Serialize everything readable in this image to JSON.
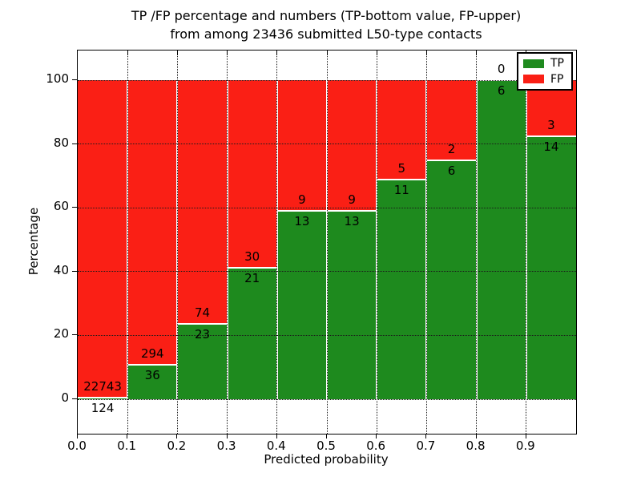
{
  "chart_data": {
    "type": "bar",
    "stacked": true,
    "normalized": "percent",
    "title_line1": "TP /FP percentage and numbers (TP-bottom value, FP-upper)",
    "title_line2": "from among 23436 submitted L50-type contacts",
    "xlabel": "Predicted probability",
    "ylabel": "Percentage",
    "bins_start": [
      0.0,
      0.1,
      0.2,
      0.3,
      0.4,
      0.5,
      0.6,
      0.7,
      0.8,
      0.9
    ],
    "bin_width": 0.1,
    "x_tick_labels": [
      "0.0",
      "0.1",
      "0.2",
      "0.3",
      "0.4",
      "0.5",
      "0.6",
      "0.7",
      "0.8",
      "0.9"
    ],
    "y_ticks": [
      0,
      20,
      40,
      60,
      80,
      100
    ],
    "xlim": [
      0,
      1
    ],
    "ylim": [
      -11,
      109
    ],
    "grid": "dotted",
    "series": [
      {
        "name": "TP",
        "color": "#1e8a1e",
        "values": [
          124,
          36,
          23,
          21,
          13,
          13,
          11,
          6,
          6,
          14
        ]
      },
      {
        "name": "FP",
        "color": "#fa1f15",
        "values": [
          22743,
          294,
          74,
          30,
          9,
          9,
          5,
          2,
          0,
          3
        ]
      }
    ],
    "tp_percentages": [
      0.54,
      10.91,
      23.71,
      41.18,
      59.09,
      59.09,
      68.75,
      75.0,
      100.0,
      82.35
    ],
    "legend": {
      "position": "upper right",
      "entries": [
        "TP",
        "FP"
      ]
    },
    "annotation_note": "TP count below segment boundary, FP count above segment boundary"
  }
}
